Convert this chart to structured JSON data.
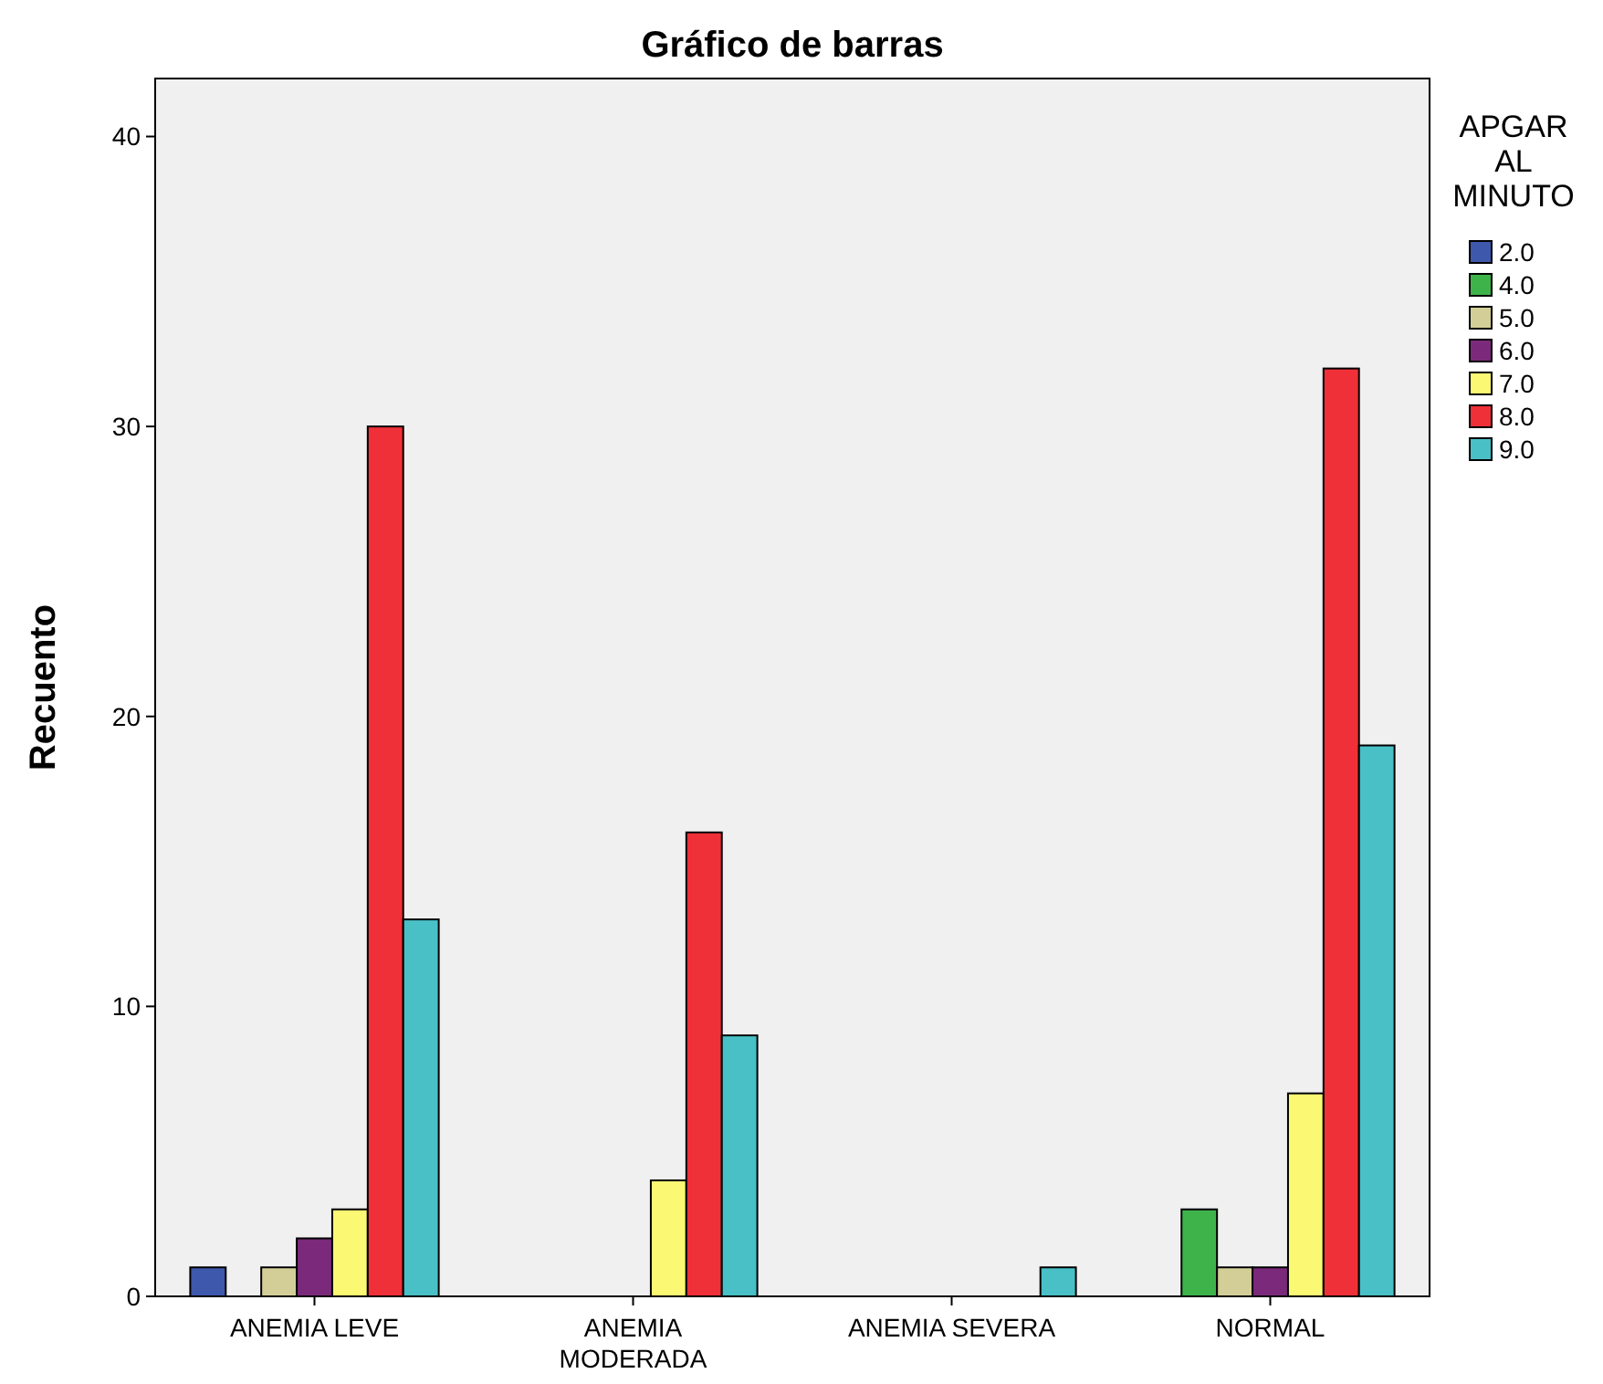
{
  "chart_data": {
    "type": "bar",
    "title": "Gráfico de barras",
    "ylabel": "Recuento",
    "legend_title": "APGAR AL MINUTO",
    "legend": "top right",
    "grid": false,
    "categories": [
      "ANEMIA LEVE",
      "ANEMIA MODERADA",
      "ANEMIA SEVERA",
      "NORMAL"
    ],
    "ylim": [
      0,
      42
    ],
    "yticks": [
      0,
      10,
      20,
      30,
      40
    ],
    "series": [
      {
        "name": "2.0",
        "color": "#3e58ac",
        "values": [
          1,
          null,
          null,
          null
        ]
      },
      {
        "name": "4.0",
        "color": "#3eb34a",
        "values": [
          null,
          null,
          null,
          3
        ]
      },
      {
        "name": "5.0",
        "color": "#d3ce97",
        "values": [
          1,
          null,
          null,
          1
        ]
      },
      {
        "name": "6.0",
        "color": "#7b2a7b",
        "values": [
          2,
          null,
          null,
          1
        ]
      },
      {
        "name": "7.0",
        "color": "#fbf873",
        "values": [
          3,
          4,
          null,
          7
        ]
      },
      {
        "name": "8.0",
        "color": "#ef3038",
        "values": [
          30,
          16,
          null,
          32
        ]
      },
      {
        "name": "9.0",
        "color": "#48c0c6",
        "values": [
          13,
          9,
          1,
          19
        ]
      }
    ]
  }
}
